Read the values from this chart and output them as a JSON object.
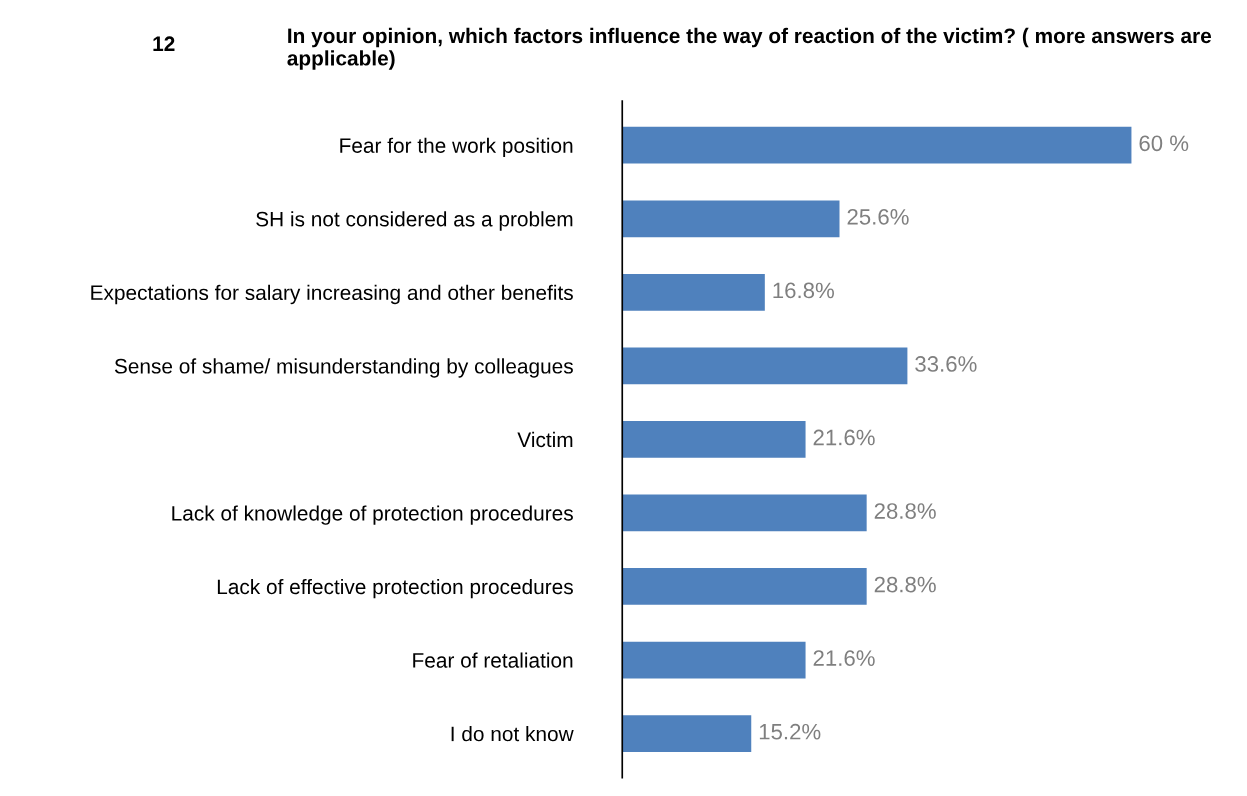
{
  "chart_data": {
    "type": "bar",
    "orientation": "horizontal",
    "title": "In your opinion, which factors influence the way of reaction of the victim? ( more answers are applicable)",
    "annotations": [
      "12"
    ],
    "categories": [
      "Fear for the work position",
      "SH is not considered as a problem",
      "Expectations for salary increasing and other benefits",
      "Sense of shame/ misunderstanding by colleagues",
      "Victim",
      "Lack of knowledge of protection procedures",
      "Lack of effective protection procedures",
      "Fear of retaliation",
      "I do not know"
    ],
    "values": [
      60,
      25.6,
      16.8,
      33.6,
      21.6,
      28.8,
      28.8,
      21.6,
      15.2
    ],
    "value_labels": [
      "60 %",
      "25.6%",
      "16.8%",
      "33.6%",
      "21.6%",
      "28.8%",
      "28.8%",
      "21.6%",
      "15.2%"
    ],
    "color": "#4f81bd",
    "tick_labels": "y",
    "grid": false,
    "legend": false
  }
}
